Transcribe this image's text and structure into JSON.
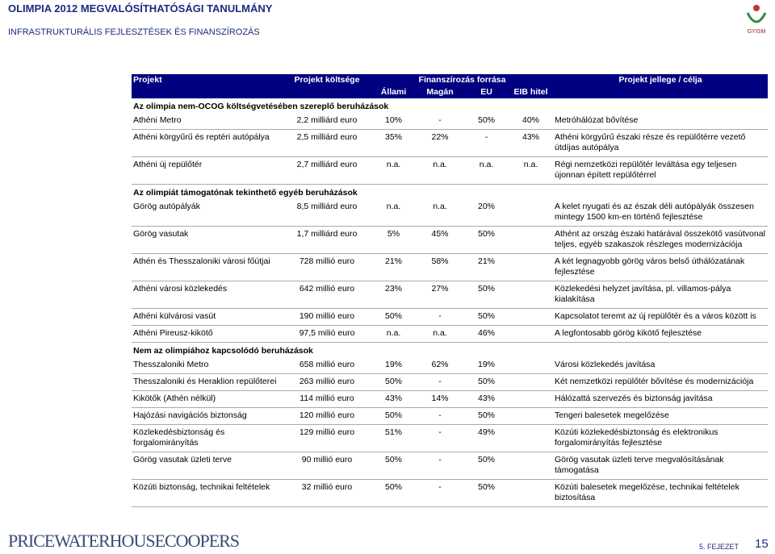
{
  "header": {
    "title": "OLIMPIA 2012 MEGVALÓSÍTHATÓSÁGI TANULMÁNY",
    "subtitle": "INFRASTRUKTURÁLIS FEJLESZTÉSEK ÉS FINANSZÍROZÁS",
    "logo": "GYISM"
  },
  "table": {
    "columns": {
      "project": "Projekt",
      "cost": "Projekt költsége",
      "funding": "Finanszírozás forrása",
      "purpose": "Projekt jellege / célja",
      "sources": [
        "Állami",
        "Magán",
        "EU",
        "EIB hitel"
      ]
    },
    "sections": [
      {
        "title": "Az olimpia nem-OCOG költségvetésében szereplő beruházások",
        "rows": [
          {
            "project": "Athéni Metro",
            "cost": "2,2 milliárd euro",
            "funding": [
              "10%",
              "-",
              "50%",
              "40%"
            ],
            "purpose": "Metróhálózat bővítése"
          },
          {
            "project": "Athéni körgyűrű és reptéri autópálya",
            "cost": "2,5 milliárd euro",
            "funding": [
              "35%",
              "22%",
              "-",
              "43%"
            ],
            "purpose": "Athéni körgyűrű északi része és repülőtérre vezető útdíjas autópálya"
          },
          {
            "project": "Athéni új repülőtér",
            "cost": "2,7 milliárd euro",
            "funding": [
              "n.a.",
              "n.a.",
              "n.a.",
              "n.a."
            ],
            "purpose": "Régi nemzetközi repülőtér leváltása egy teljesen újonnan épített repülőtérrel"
          }
        ]
      },
      {
        "title": "Az olimpiát támogatónak tekinthető egyéb beruházások",
        "rows": [
          {
            "project": "Görög autópályák",
            "cost": "8,5 milliárd euro",
            "funding": [
              "n.a.",
              "n.a.",
              "20%"
            ],
            "purpose": "A kelet nyugati és az észak déli autópályák összesen mintegy 1500 km-en történő fejlesztése"
          },
          {
            "project": "Görög vasutak",
            "cost": "1,7 milliárd euro",
            "funding": [
              "5%",
              "45%",
              "50%"
            ],
            "purpose": "Athént az ország északi határával összekötő vasútvonal teljes, egyéb szakaszok részleges modernizációja"
          },
          {
            "project": "Athén és Thesszaloniki városi főútjai",
            "cost": "728 millió euro",
            "funding": [
              "21%",
              "58%",
              "21%"
            ],
            "purpose": "A két legnagyobb görög város belső úthálózatának fejlesztése"
          },
          {
            "project": "Athéni városi közlekedés",
            "cost": "642 millió euro",
            "funding": [
              "23%",
              "27%",
              "50%"
            ],
            "purpose": "Közlekedési helyzet javítása, pl. villamos-pálya kialakítása"
          },
          {
            "project": "Athéni külvárosi vasút",
            "cost": "190 millió euro",
            "funding": [
              "50%",
              "-",
              "50%"
            ],
            "purpose": "Kapcsolatot teremt az új repülőtér és a város között is"
          },
          {
            "project": "Athéni Pireusz-kikötő",
            "cost": "97,5 milió euro",
            "funding": [
              "n.a.",
              "n.a.",
              "46%"
            ],
            "purpose": "A legfontosabb görög kikötő fejlesztése"
          }
        ]
      },
      {
        "title": "Nem az olimpiához kapcsolódó beruházások",
        "rows": [
          {
            "project": "Thesszaloniki Metro",
            "cost": "658 millió euro",
            "funding": [
              "19%",
              "62%",
              "19%"
            ],
            "purpose": "Városi közlekedés javítása"
          },
          {
            "project": "Thesszaloniki és Heraklion repülőterei",
            "cost": "263 millió euro",
            "funding": [
              "50%",
              "-",
              "50%"
            ],
            "purpose": "Két nemzetközi repülőtér bővítése és modernizációja"
          },
          {
            "project": "Kikötők (Athén nélkül)",
            "cost": "114 millió euro",
            "funding": [
              "43%",
              "14%",
              "43%"
            ],
            "purpose": "Hálózattá szervezés és biztonság javítása"
          },
          {
            "project": "Hajózási navigációs biztonság",
            "cost": "120 millió euro",
            "funding": [
              "50%",
              "-",
              "50%"
            ],
            "purpose": "Tengeri balesetek megelőzése"
          },
          {
            "project": "Közlekedésbiztonság és forgalomirányítás",
            "cost": "129 millió euro",
            "funding": [
              "51%",
              "-",
              "49%"
            ],
            "purpose": "Közúti közlekedésbiztonság és elektronikus forgalomirányítás fejlesztése"
          },
          {
            "project": "Görög vasutak üzleti terve",
            "cost": "90 millió euro",
            "funding": [
              "50%",
              "-",
              "50%"
            ],
            "purpose": "Görög vasutak üzleti terve megvalósításának támogatása"
          },
          {
            "project": "Közúti biztonság, technikai feltételek",
            "cost": "32 millió euro",
            "funding": [
              "50%",
              "-",
              "50%"
            ],
            "purpose": "Közúti balesetek megelőzése, technikai feltételek biztosítása"
          }
        ]
      }
    ]
  },
  "footer": {
    "company": "PRICEWATERHOUSECOOPERS",
    "chapter": "5. FEJEZET",
    "page": "15"
  }
}
